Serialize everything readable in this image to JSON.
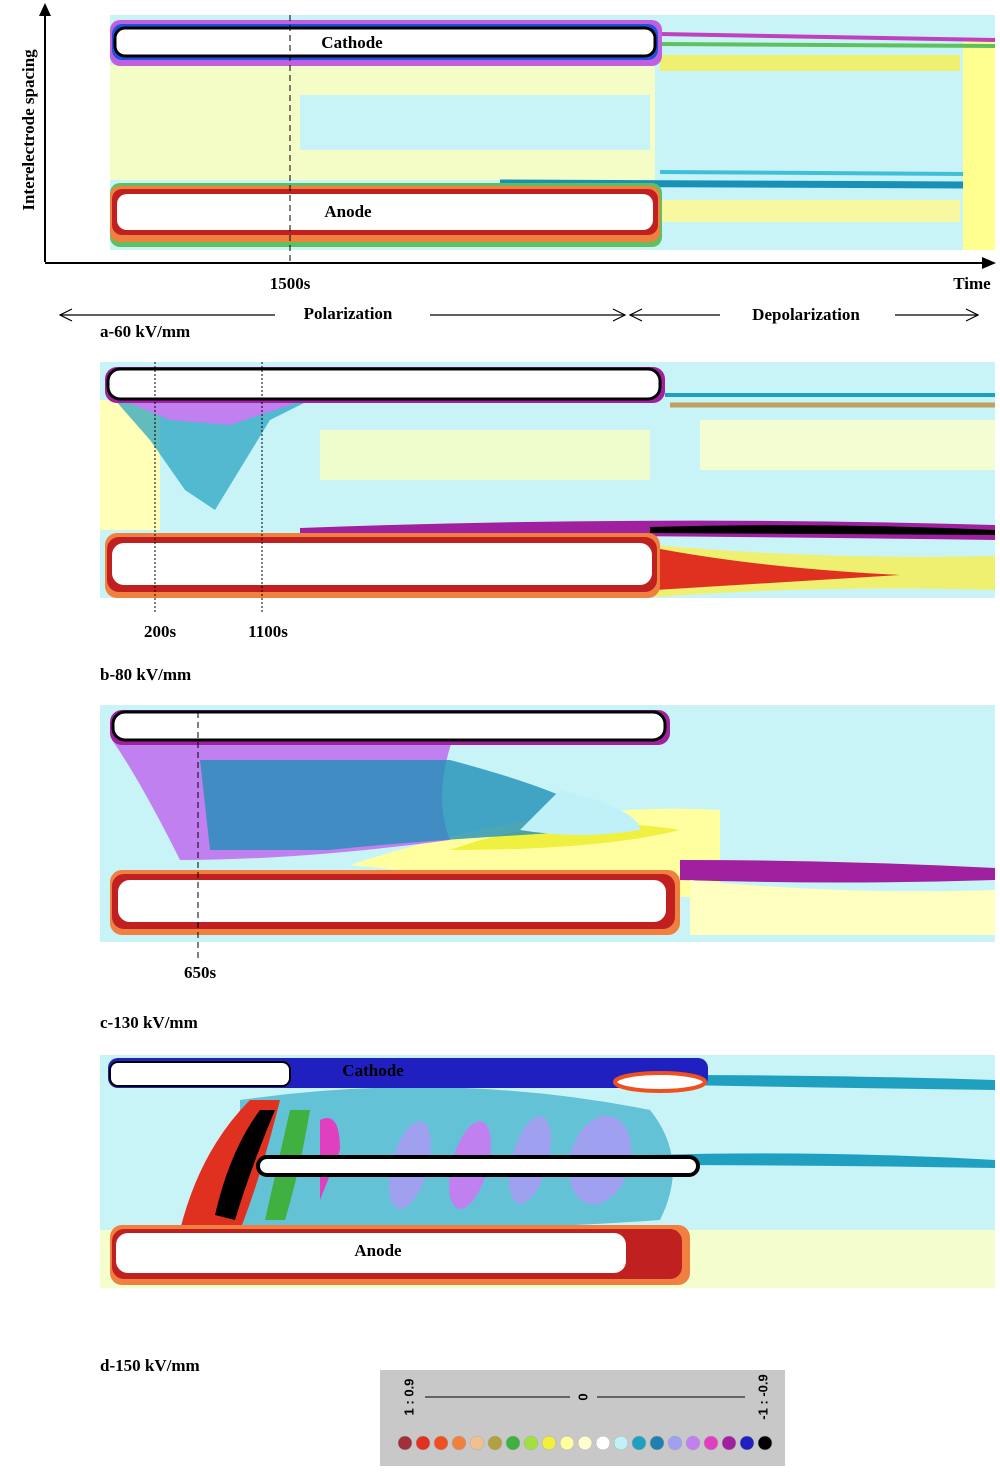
{
  "axes": {
    "y_label": "Interelectrode spacing",
    "x_label": "Time"
  },
  "phases": [
    "Polarization",
    "Depolarization"
  ],
  "panels": [
    {
      "caption": "a-60 kV/mm",
      "electrodes": [
        "Cathode",
        "Anode"
      ],
      "markers": [
        "1500s"
      ]
    },
    {
      "caption": "b-80 kV/mm",
      "markers": [
        "200s",
        "1100s"
      ]
    },
    {
      "caption": "c-130 kV/mm",
      "markers": [
        "650s"
      ]
    },
    {
      "caption": "d-150 kV/mm",
      "electrodes": [
        "Cathode",
        "Anode"
      ]
    }
  ],
  "color_scale": {
    "labels": [
      "1 : 0.9",
      "0",
      "-1 : -0.9"
    ],
    "colors": [
      "#a0303a",
      "#e03020",
      "#f05020",
      "#f08040",
      "#f0c090",
      "#b0a040",
      "#40b040",
      "#a0e040",
      "#f0f040",
      "#ffffa0",
      "#ffffd0",
      "#ffffff",
      "#c0f0f8",
      "#20a0c0",
      "#2080b0",
      "#a0a0f0",
      "#c080f0",
      "#e040c0",
      "#a020a0",
      "#2020c0",
      "#000000"
    ]
  }
}
